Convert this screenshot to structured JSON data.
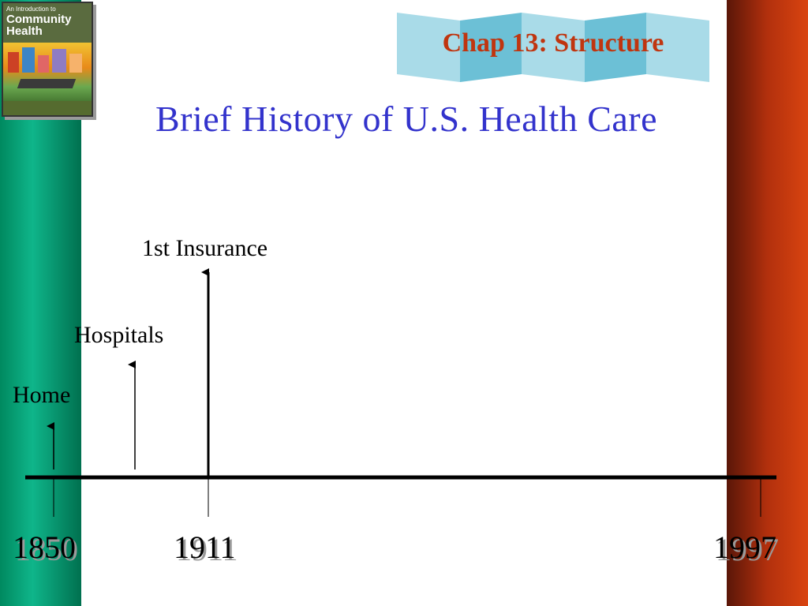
{
  "header": {
    "chapter": "Chap 13: Structure",
    "title": "Brief History of U.S. Health Care"
  },
  "book_cover": {
    "line1": "An Introduction to",
    "line2": "Community",
    "line3": "Health"
  },
  "timeline": {
    "events": [
      {
        "label": "Home"
      },
      {
        "label": "Hospitals"
      },
      {
        "label": "1st Insurance"
      }
    ],
    "years": [
      "1850",
      "1911",
      "1997"
    ]
  },
  "colors": {
    "title": "#3333cc",
    "chapter": "#c0350f",
    "left_bar": "#00895f",
    "right_bar": "#b2300d",
    "banner": "#8ecfe0"
  }
}
